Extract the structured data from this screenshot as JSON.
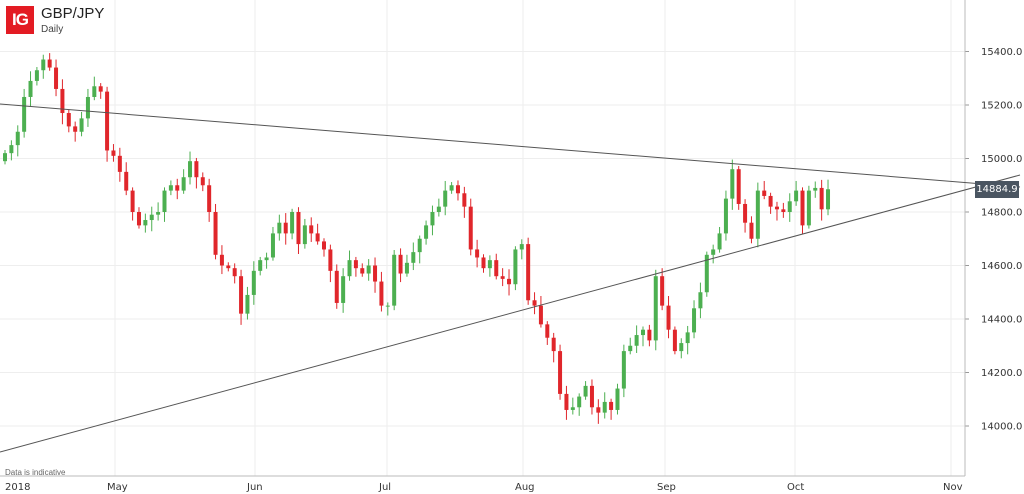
{
  "header": {
    "logo_text": "IG",
    "pair": "GBP/JPY",
    "period": "Daily"
  },
  "disclaimer": "Data is indicative",
  "current_price_label": "14884.9",
  "colors": {
    "up": "#4caf50",
    "down": "#e0262b",
    "grid": "#eeeeee",
    "trendline": "#555555",
    "logo": "#e31b23",
    "price_tag": "#4a5561"
  },
  "chart_data": {
    "type": "candlestick",
    "y_ticks": [
      "14000.0",
      "14200.0",
      "14400.0",
      "14600.0",
      "14800.0",
      "15000.0",
      "15200.0",
      "15400.0"
    ],
    "x_ticks": [
      "2018",
      "May",
      "Jun",
      "Jul",
      "Aug",
      "Sep",
      "Oct",
      "Nov"
    ],
    "ylim": [
      13900,
      15470
    ],
    "grid": true,
    "closes": [
      15020,
      15050,
      15100,
      15230,
      15290,
      15330,
      15370,
      15340,
      15260,
      15170,
      15120,
      15100,
      15150,
      15230,
      15270,
      15250,
      15030,
      15010,
      14950,
      14880,
      14800,
      14750,
      14770,
      14790,
      14800,
      14880,
      14900,
      14880,
      14930,
      14990,
      14930,
      14900,
      14800,
      14640,
      14600,
      14590,
      14560,
      14420,
      14490,
      14580,
      14620,
      14630,
      14720,
      14760,
      14720,
      14800,
      14680,
      14750,
      14720,
      14690,
      14660,
      14580,
      14460,
      14560,
      14620,
      14590,
      14570,
      14600,
      14540,
      14450,
      14450,
      14640,
      14570,
      14610,
      14650,
      14700,
      14750,
      14800,
      14820,
      14880,
      14900,
      14870,
      14820,
      14660,
      14630,
      14590,
      14620,
      14560,
      14550,
      14530,
      14660,
      14680,
      14470,
      14450,
      14380,
      14330,
      14280,
      14120,
      14060,
      14070,
      14110,
      14150,
      14070,
      14050,
      14090,
      14060,
      14140,
      14280,
      14300,
      14340,
      14360,
      14320,
      14560,
      14450,
      14360,
      14280,
      14310,
      14350,
      14440,
      14500,
      14640,
      14660,
      14720,
      14850,
      14960,
      14830,
      14760,
      14700,
      14880,
      14860,
      14820,
      14810,
      14800,
      14840,
      14880,
      14750,
      14880,
      14890,
      14810,
      14885
    ]
  }
}
